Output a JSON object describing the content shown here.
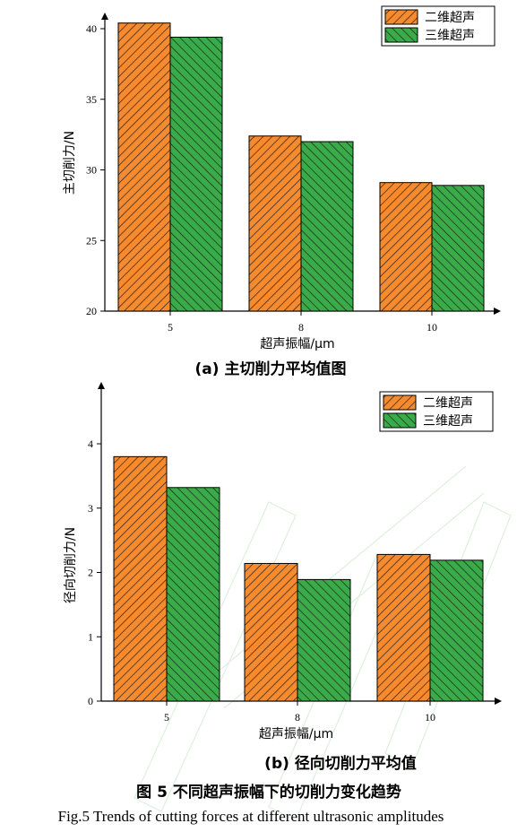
{
  "figure": {
    "caption_cn": "图 5 不同超声振幅下的切削力变化趋势",
    "caption_en": "Fig.5 Trends of cutting forces at different ultrasonic amplitudes",
    "colors": {
      "series_2d": "#f58a2e",
      "series_3d": "#3aab49",
      "hatch": "#1a1a1a"
    }
  },
  "chart_data": [
    {
      "type": "bar",
      "title": "(a) 主切削力平均值图",
      "xlabel": "超声振幅/μm",
      "ylabel": "主切削力/N",
      "categories": [
        "5",
        "8",
        "10"
      ],
      "ylim": [
        20,
        40
      ],
      "yticks": [
        "20",
        "25",
        "30",
        "35",
        "40"
      ],
      "series": [
        {
          "name": "二维超声",
          "values": [
            40.4,
            32.4,
            29.1
          ]
        },
        {
          "name": "三维超声",
          "values": [
            39.4,
            32.0,
            28.9
          ]
        }
      ],
      "legend": "top-right"
    },
    {
      "type": "bar",
      "title": "(b) 径向切削力平均值",
      "xlabel": "超声振幅/μm",
      "ylabel": "径向切削力/N",
      "categories": [
        "5",
        "8",
        "10"
      ],
      "ylim": [
        0,
        4
      ],
      "yticks": [
        "0",
        "1",
        "2",
        "3",
        "4"
      ],
      "series": [
        {
          "name": "二维超声",
          "values": [
            3.8,
            2.14,
            2.28
          ]
        },
        {
          "name": "三维超声",
          "values": [
            3.32,
            1.89,
            2.19
          ]
        }
      ],
      "legend": "top-right"
    }
  ]
}
